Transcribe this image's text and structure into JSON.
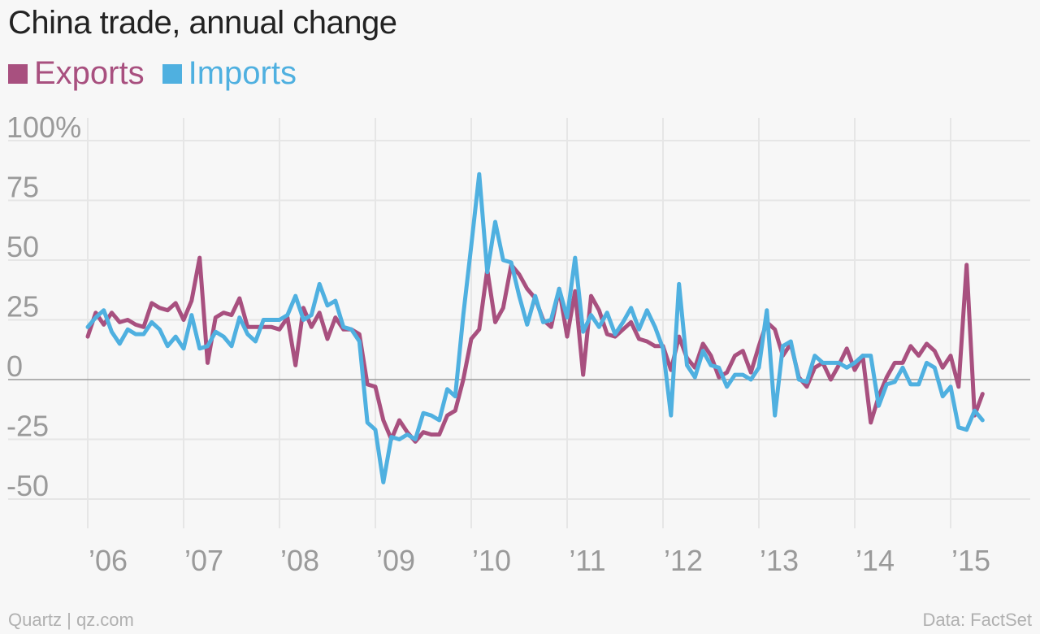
{
  "chart_data": {
    "type": "line",
    "title": "China trade, annual change",
    "xlabel": "",
    "ylabel": "",
    "ylim": [
      -62,
      108
    ],
    "yticks": [
      100,
      75,
      50,
      25,
      0,
      -25,
      -50
    ],
    "ytick_labels": [
      "100%",
      "75",
      "50",
      "25",
      "0",
      "-25",
      "-50"
    ],
    "xticks": [
      2006,
      2007,
      2008,
      2009,
      2010,
      2011,
      2012,
      2013,
      2014,
      2015
    ],
    "xtick_labels": [
      "’06",
      "’07",
      "’08",
      "’09",
      "’10",
      "’11",
      "’12",
      "’13",
      "’14",
      "’15"
    ],
    "x_start": "2006-01",
    "x_interval": "month",
    "grid": true,
    "legend_position": "top-left",
    "series": [
      {
        "name": "Exports",
        "color": "#a8507f",
        "values": [
          18,
          28,
          23,
          28,
          24,
          25,
          23,
          22,
          32,
          30,
          29,
          32,
          25,
          33,
          51,
          7,
          26,
          28,
          27,
          34,
          22,
          22,
          22,
          22,
          21,
          26,
          6,
          30,
          22,
          28,
          17,
          26,
          21,
          21,
          19,
          -2,
          -3,
          -17,
          -25,
          -17,
          -22,
          -26,
          -22,
          -23,
          -23,
          -15,
          -13,
          0,
          17,
          21,
          46,
          24,
          30,
          48,
          44,
          38,
          34,
          25,
          22,
          38,
          18,
          37,
          2,
          35,
          29,
          19,
          18,
          21,
          24,
          17,
          16,
          14,
          14,
          4,
          18,
          9,
          5,
          15,
          10,
          1,
          3,
          10,
          12,
          3,
          14,
          24,
          21,
          10,
          15,
          1,
          -3,
          5,
          7,
          0,
          6,
          13,
          4,
          10,
          -18,
          -7,
          1,
          7,
          7,
          14,
          10,
          15,
          12,
          5,
          10,
          -3,
          48,
          -15,
          -6
        ]
      },
      {
        "name": "Imports",
        "color": "#4fb0e0",
        "values": [
          22,
          26,
          29,
          20,
          15,
          21,
          19,
          19,
          24,
          21,
          14,
          18,
          13,
          27,
          13,
          14,
          20,
          18,
          14,
          26,
          19,
          16,
          25,
          25,
          25,
          27,
          35,
          25,
          27,
          40,
          31,
          33,
          22,
          21,
          16,
          -18,
          -21,
          -43,
          -24,
          -25,
          -23,
          -25,
          -14,
          -15,
          -17,
          -4,
          -7,
          27,
          56,
          86,
          45,
          66,
          50,
          49,
          35,
          23,
          35,
          24,
          25,
          38,
          26,
          51,
          20,
          27,
          22,
          28,
          19,
          24,
          30,
          21,
          29,
          22,
          13,
          -15,
          40,
          6,
          1,
          12,
          6,
          5,
          -3,
          2,
          2,
          0,
          5,
          29,
          -15,
          14,
          16,
          0,
          -1,
          10,
          7,
          7,
          7,
          5,
          7,
          10,
          10,
          -11,
          -2,
          -1,
          5,
          -2,
          -2,
          7,
          5,
          -7,
          -3,
          -20,
          -21,
          -13,
          -17
        ]
      }
    ],
    "zero_line": true
  },
  "footer": {
    "credit": "Quartz | qz.com",
    "source": "Data: FactSet"
  }
}
